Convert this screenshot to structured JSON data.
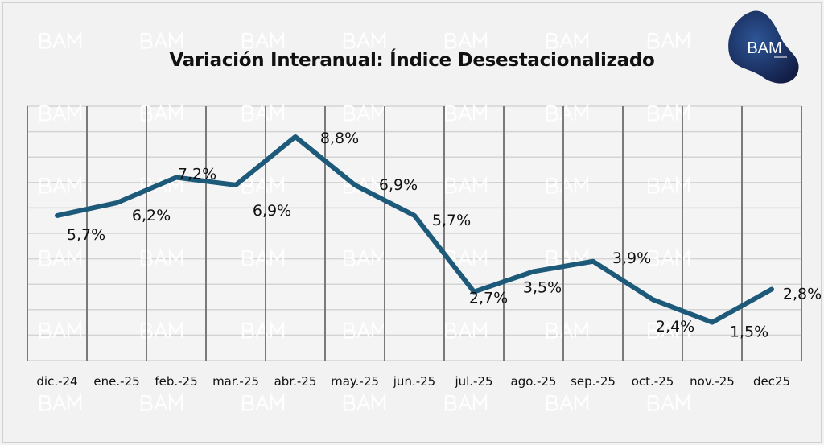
{
  "brand": {
    "logo_text": "BAM",
    "logo_color": "#1f3f78",
    "watermark": "BAM"
  },
  "chart_data": {
    "type": "line",
    "title": "Variación Interanual: Índice Desestacionalizado",
    "categories": [
      "dic.-24",
      "ene.-25",
      "feb.-25",
      "mar.-25",
      "abr.-25",
      "may.-25",
      "jun.-25",
      "jul.-25",
      "ago.-25",
      "sep.-25",
      "oct.-25",
      "nov.-25",
      "dec25"
    ],
    "values": [
      5.7,
      6.2,
      7.2,
      6.9,
      8.8,
      6.9,
      5.7,
      2.7,
      3.5,
      3.9,
      2.4,
      1.5,
      2.8
    ],
    "data_labels": [
      "5,7%",
      "6,2%",
      "7,2%",
      "6,9%",
      "8,8%",
      "6,9%",
      "5,7%",
      "2,7%",
      "3,5%",
      "3,9%",
      "2,4%",
      "1,5%",
      "2,8%"
    ],
    "ylim": [
      0,
      10
    ],
    "grid": true,
    "line_color": "#1d5a7a",
    "xlabel": "",
    "ylabel": ""
  }
}
